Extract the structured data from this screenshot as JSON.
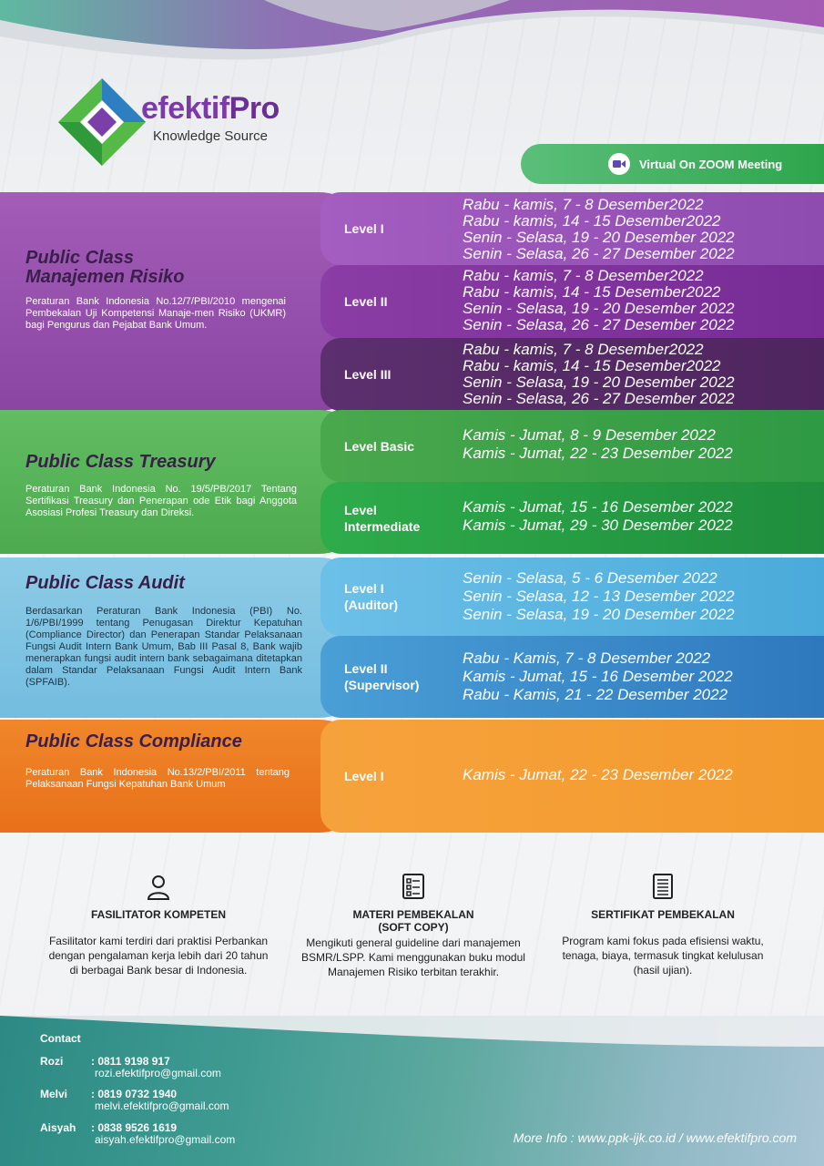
{
  "brand": {
    "name_part1": "efektif",
    "name_part2": "Pro",
    "tagline": "Knowledge Source"
  },
  "zoom": {
    "label": "Virtual On ZOOM Meeting"
  },
  "sections": [
    {
      "title_line1": "Public Class",
      "title_line2": "Manajemen Risiko",
      "description": "Peraturan Bank Indonesia No.12/7/PBI/2010 mengenai Pembekalan Uji Kompetensi Manaje-men Risiko (UKMR) bagi Pengurus dan Pejabat Bank Umum.",
      "color": "#9b4bb0",
      "rows": [
        {
          "label": "Level I",
          "dates": [
            "Rabu - kamis, 7 - 8 Desember2022",
            "Rabu - kamis, 14 - 15 Desember2022",
            "Senin - Selasa, 19 - 20 Desember 2022",
            "Senin - Selasa, 26 - 27 Desember 2022"
          ]
        },
        {
          "label": "Level II",
          "dates": [
            "Rabu - kamis, 7 - 8 Desember2022",
            "Rabu - kamis, 14 - 15 Desember2022",
            "Senin - Selasa, 19 - 20 Desember 2022",
            "Senin - Selasa, 26 - 27 Desember 2022"
          ]
        },
        {
          "label": "Level III",
          "dates": [
            "Rabu - kamis, 7 - 8 Desember2022",
            "Rabu - kamis, 14 - 15 Desember2022",
            "Senin - Selasa, 19 - 20 Desember 2022",
            "Senin - Selasa, 26 - 27 Desember 2022"
          ]
        }
      ]
    },
    {
      "title": "Public Class Treasury",
      "description": "Peraturan Bank Indonesia No. 19/5/PB/2017 Tentang Sertifikasi Treasury dan Penerapan ode Etik bagi Anggota Asosiasi Profesi Treasury dan Direksi.",
      "color": "#5cb85c",
      "rows": [
        {
          "label": "Level Basic",
          "dates": [
            "Kamis - Jumat, 8 - 9 Desember 2022",
            "Kamis - Jumat, 22 - 23 Desember 2022"
          ]
        },
        {
          "label_line1": "Level",
          "label_line2": "Intermediate",
          "dates": [
            "Kamis - Jumat, 15 - 16 Desember 2022",
            "Kamis - Jumat, 29 - 30 Desember 2022"
          ]
        }
      ]
    },
    {
      "title": "Public Class Audit",
      "description": "Berdasarkan Peraturan Bank Indonesia (PBI) No. 1/6/PBI/1999 tentang Penugasan Direktur Kepatuhan (Compliance Director) dan Penerapan Standar Pelaksanaan Fungsi Audit Intern Bank Umum, Bab III Pasal 8, Bank wajib menerapkan fungsi audit intern bank sebagaimana ditetapkan dalam Standar Pelaksanaan Fungsi Audit Intern Bank (SPFAIB).",
      "color": "#5aaed8",
      "rows": [
        {
          "label_line1": "Level I",
          "label_line2": "(Auditor)",
          "dates": [
            "Senin - Selasa, 5 - 6 Desember 2022",
            "Senin - Selasa, 12 - 13 Desember 2022",
            "Senin - Selasa, 19 - 20 Desember 2022"
          ]
        },
        {
          "label_line1": "Level II",
          "label_line2": "(Supervisor)",
          "dates": [
            "Rabu - Kamis, 7 - 8 Desember 2022",
            "Kamis - Jumat, 15 - 16 Desember 2022",
            "Rabu - Kamis, 21 - 22 Desember 2022"
          ]
        }
      ]
    },
    {
      "title": "Public Class Compliance",
      "description": "Peraturan Bank Indonesia No.13/2/PBI/2011 tentang Pelaksanaan Fungsi Kepatuhan Bank Umum",
      "color": "#ef7d22",
      "rows": [
        {
          "label": "Level I",
          "dates": [
            "Kamis - Jumat, 22 - 23 Desember 2022"
          ]
        }
      ]
    }
  ],
  "features": [
    {
      "icon": "person-icon",
      "title": "FASILITATOR KOMPETEN",
      "description": "Fasilitator kami terdiri dari praktisi Perbankan dengan pengalaman kerja lebih dari 20 tahun di berbagai Bank besar di Indonesia."
    },
    {
      "icon": "checklist-icon",
      "title_line1": "MATERI PEMBEKALAN",
      "title_line2": "(SOFT COPY)",
      "description": "Mengikuti general guideline dari manajemen BSMR/LSPP. Kami menggunakan buku modul Manajemen Risiko terbitan terakhir."
    },
    {
      "icon": "certificate-icon",
      "title": "SERTIFIKAT PEMBEKALAN",
      "description": "Program kami fokus pada efisiensi waktu, tenaga, biaya, termasuk tingkat kelulusan (hasil ujian)."
    }
  ],
  "contact": {
    "heading": "Contact",
    "people": [
      {
        "name": "Rozi",
        "phone": ": 0811 9198 917",
        "email": "rozi.efektifpro@gmail.com"
      },
      {
        "name": "Melvi",
        "phone": ": 0819 0732 1940",
        "email": "melvi.efektifpro@gmail.com"
      },
      {
        "name": "Aisyah",
        "phone": ": 0838 9526 1619",
        "email": "aisyah.efektifpro@gmail.com"
      }
    ]
  },
  "more_info": "More Info : www.ppk-ijk.co.id / www.efektifpro.com"
}
